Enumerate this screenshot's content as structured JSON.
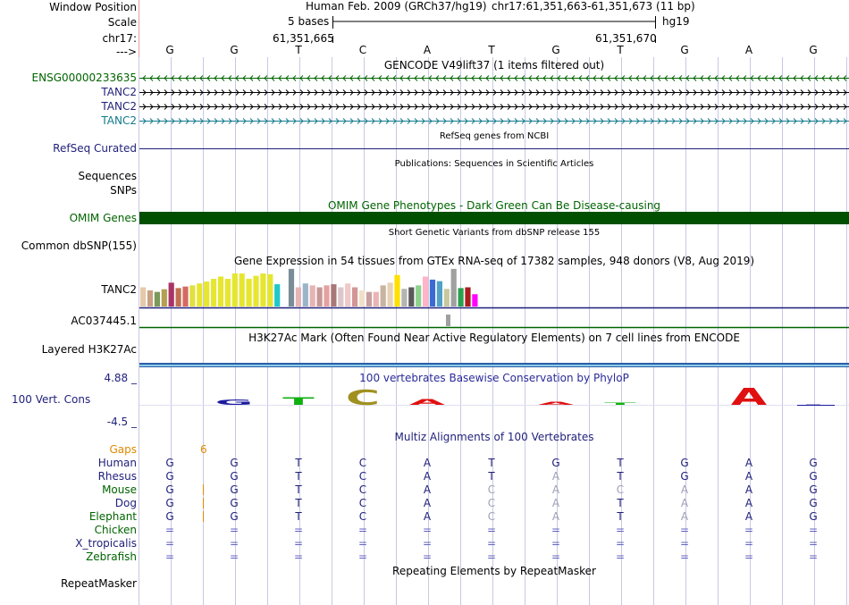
{
  "colors": {
    "label_dark": "#000000",
    "label_green": "#006400",
    "label_blue": "#1f1f7a",
    "label_teal": "#127a8c",
    "label_orange": "#e08a00",
    "omim_bar": "#005000",
    "grid": "#c8c8e6",
    "cons_blue": "#1a1aa0",
    "cons_green": "#10b010",
    "cons_olive": "#a09020",
    "cons_red": "#e01010"
  },
  "labels": {
    "window_position": "Window Position",
    "scale": "Scale",
    "chrom": "chr17:",
    "arrow": "--->",
    "ensg": "ENSG00000233635",
    "tanc2_a": "TANC2",
    "tanc2_b": "TANC2",
    "tanc2_c": "TANC2",
    "refseq": "RefSeq Curated",
    "sequences": "Sequences",
    "snps": "SNPs",
    "omim": "OMIM Genes",
    "dbsnp": "Common dbSNP(155)",
    "gtex_gene": "TANC2",
    "ac": "AC037445.1",
    "h3k27ac": "Layered H3K27Ac",
    "cons_max": "4.88 _",
    "cons_label": "100 Vert. Cons",
    "cons_min": "-4.5 _",
    "gaps": "Gaps",
    "repeatmasker": "RepeatMasker"
  },
  "ruler": {
    "assembly": "Human Feb. 2009 (GRCh37/hg19)",
    "position": "chr17:61,351,663-61,351,673 (11 bp)",
    "scale_text": "5 bases",
    "scale_db": "hg19",
    "tick_left": "61,351,665",
    "tick_right": "61,351,670",
    "bases": [
      "G",
      "G",
      "T",
      "C",
      "A",
      "T",
      "G",
      "T",
      "G",
      "A",
      "G"
    ]
  },
  "titles": {
    "gencode": "GENCODE V49lift37 (1 items filtered out)",
    "refseq": "RefSeq genes from NCBI",
    "publications": "Publications: Sequences in Scientific Articles",
    "omim": "OMIM Gene Phenotypes - Dark Green Can Be Disease-causing",
    "dbsnp": "Short Genetic Variants from dbSNP release 155",
    "gtex": "Gene Expression in 54 tissues from GTEx RNA-seq of 17382 samples, 948 donors (V8, Aug 2019)",
    "h3k27ac": "H3K27Ac Mark (Often Found Near Active Regulatory Elements) on 7 cell lines from ENCODE",
    "phylop": "100 vertebrates Basewise Conservation by PhyloP",
    "multiz": "Multiz Alignments of 100 Vertebrates",
    "repeatmasker": "Repeating Elements by RepeatMasker"
  },
  "gaps_value": "6",
  "gtex_bars": [
    {
      "color": "#e6c8aa",
      "value": 0.5
    },
    {
      "color": "#c9a082",
      "value": 0.42
    },
    {
      "color": "#7a9a5a",
      "value": 0.38
    },
    {
      "color": "#b4a050",
      "value": 0.45
    },
    {
      "color": "#aa3366",
      "value": 0.62
    },
    {
      "color": "#c07050",
      "value": 0.48
    },
    {
      "color": "#d46a64",
      "value": 0.52
    },
    {
      "color": "#e0e040",
      "value": 0.55
    },
    {
      "color": "#e6e630",
      "value": 0.6
    },
    {
      "color": "#e6e630",
      "value": 0.65
    },
    {
      "color": "#e6e630",
      "value": 0.72
    },
    {
      "color": "#e6e630",
      "value": 0.78
    },
    {
      "color": "#e6e630",
      "value": 0.72
    },
    {
      "color": "#e6e630",
      "value": 0.86
    },
    {
      "color": "#e6e630",
      "value": 0.86
    },
    {
      "color": "#e6e630",
      "value": 0.72
    },
    {
      "color": "#e6e630",
      "value": 0.8
    },
    {
      "color": "#e6e630",
      "value": 0.86
    },
    {
      "color": "#e6e630",
      "value": 0.84
    },
    {
      "color": "#20c8c8",
      "value": 0.58
    },
    {
      "color": "#ffffff",
      "value": 0.0
    },
    {
      "color": "#7a8c96",
      "value": 0.98
    },
    {
      "color": "#e6b4b4",
      "value": 0.5
    },
    {
      "color": "#9ab4c8",
      "value": 0.6
    },
    {
      "color": "#e6b4b4",
      "value": 0.55
    },
    {
      "color": "#c89696",
      "value": 0.5
    },
    {
      "color": "#e6a0a0",
      "value": 0.55
    },
    {
      "color": "#a87878",
      "value": 0.58
    },
    {
      "color": "#dcc8c8",
      "value": 0.5
    },
    {
      "color": "#f0c8c8",
      "value": 0.6
    },
    {
      "color": "#d29696",
      "value": 0.5
    },
    {
      "color": "#f0e0c8",
      "value": 0.42
    },
    {
      "color": "#c8a0a0",
      "value": 0.38
    },
    {
      "color": "#ebb4b4",
      "value": 0.38
    },
    {
      "color": "#c8b4a0",
      "value": 0.55
    },
    {
      "color": "#e6d2b4",
      "value": 0.62
    },
    {
      "color": "#ffe000",
      "value": 0.82
    },
    {
      "color": "#b4b4b4",
      "value": 0.46
    },
    {
      "color": "#5a5a5a",
      "value": 0.5
    },
    {
      "color": "#8cd28c",
      "value": 0.55
    },
    {
      "color": "#ffb4c8",
      "value": 0.78
    },
    {
      "color": "#3a6ad2",
      "value": 0.7
    },
    {
      "color": "#50a0c8",
      "value": 0.66
    },
    {
      "color": "#c8c8a0",
      "value": 0.46
    },
    {
      "color": "#a0a0a0",
      "value": 0.98
    },
    {
      "color": "#2aa050",
      "value": 0.48
    },
    {
      "color": "#aa1e1e",
      "value": 0.5
    },
    {
      "color": "#ff00ff",
      "value": 0.32
    }
  ],
  "multiz": {
    "species": [
      {
        "name": "Human",
        "color": "#1f1f7a",
        "bases": [
          "G",
          "G",
          "T",
          "C",
          "A",
          "T",
          "G",
          "T",
          "G",
          "A",
          "G"
        ],
        "dim": []
      },
      {
        "name": "Rhesus",
        "color": "#1f1f7a",
        "bases": [
          "G",
          "G",
          "T",
          "C",
          "A",
          "T",
          "A",
          "T",
          "G",
          "A",
          "G"
        ],
        "dim": [
          6
        ]
      },
      {
        "name": "Mouse",
        "color": "#006400",
        "bases": [
          "G",
          "G",
          "T",
          "C",
          "A",
          "C",
          "A",
          "C",
          "A",
          "A",
          "G"
        ],
        "dim": [
          5,
          6,
          7,
          8
        ]
      },
      {
        "name": "Dog",
        "color": "#1f1f7a",
        "bases": [
          "G",
          "G",
          "T",
          "C",
          "A",
          "C",
          "A",
          "T",
          "A",
          "A",
          "G"
        ],
        "dim": [
          5,
          6,
          8
        ]
      },
      {
        "name": "Elephant",
        "color": "#006400",
        "bases": [
          "G",
          "G",
          "T",
          "C",
          "A",
          "C",
          "A",
          "T",
          "A",
          "A",
          "G"
        ],
        "dim": [
          5,
          6,
          8
        ]
      },
      {
        "name": "Chicken",
        "color": "#006400",
        "bases": [
          "=",
          "=",
          "=",
          "=",
          "=",
          "=",
          "=",
          "=",
          "=",
          "=",
          "="
        ],
        "dim": []
      },
      {
        "name": "X_tropicalis",
        "color": "#1f1f7a",
        "bases": [
          "=",
          "=",
          "=",
          "=",
          "=",
          "=",
          "=",
          "=",
          "=",
          "=",
          "="
        ],
        "dim": []
      },
      {
        "name": "Zebrafish",
        "color": "#006400",
        "bases": [
          "=",
          "=",
          "=",
          "=",
          "=",
          "=",
          "=",
          "=",
          "=",
          "=",
          "="
        ],
        "dim": []
      }
    ]
  }
}
